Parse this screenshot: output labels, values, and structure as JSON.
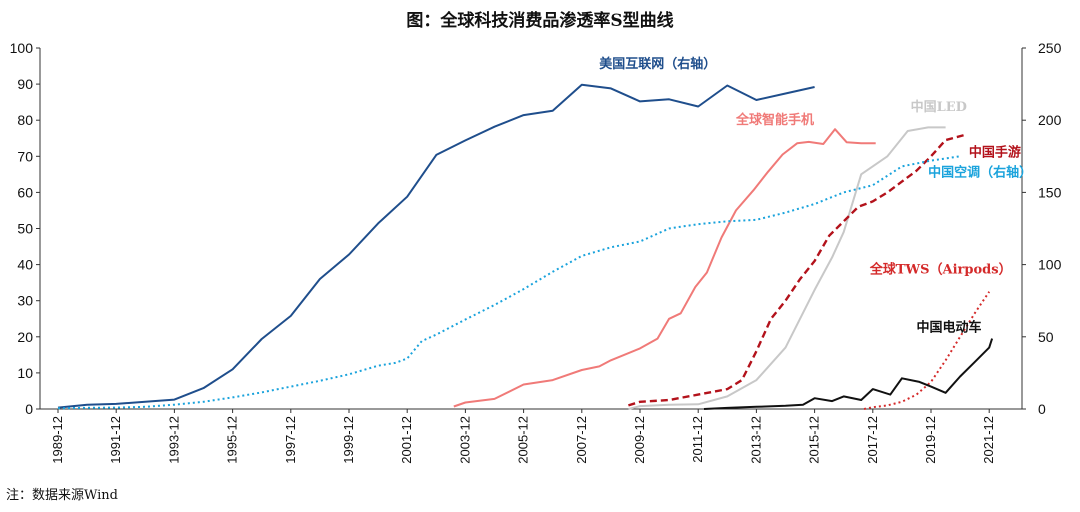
{
  "title": "图：全球科技消费品渗透率S型曲线",
  "note": "注：数据来源Wind",
  "colors": {
    "internet": "#1f4e8c",
    "smartphone": "#f07a78",
    "led": "#c8c8c8",
    "mobile_game": "#b3121b",
    "aircon": "#1aa3dc",
    "tws": "#d42a2a",
    "ev": "#111111"
  },
  "chart_data": {
    "type": "line",
    "title": "图：全球科技消费品渗透率S型曲线",
    "xlabel": "",
    "ylabel": "",
    "ylim_left": [
      0,
      100
    ],
    "yticks_left": [
      "0",
      "10",
      "20",
      "30",
      "40",
      "50",
      "60",
      "70",
      "80",
      "90",
      "100"
    ],
    "ylim_right": [
      0,
      250
    ],
    "yticks_right": [
      "0",
      "50",
      "100",
      "150",
      "200",
      "250"
    ],
    "xlim": [
      1989,
      2022.5
    ],
    "xticks": [
      "1989-12",
      "1991-12",
      "1993-12",
      "1995-12",
      "1997-12",
      "1999-12",
      "2001-12",
      "2003-12",
      "2005-12",
      "2007-12",
      "2009-12",
      "2011-12",
      "2013-12",
      "2015-12",
      "2017-12",
      "2019-12",
      "2021-12"
    ],
    "legend": "inline labels",
    "grid": false,
    "series": [
      {
        "key": "internet",
        "name": "美国互联网（右轴）",
        "axis": "right",
        "style": "solid",
        "color": "#1f4e8c",
        "label_pos": [
          2007.6,
          236
        ],
        "x": [
          1989,
          1990,
          1991,
          1992,
          1993,
          1994,
          1995,
          1996,
          1997,
          1998,
          1999,
          2000,
          2001,
          2002,
          2003,
          2004,
          2005,
          2006,
          2007,
          2008,
          2009,
          2010,
          2011,
          2012,
          2013,
          2014,
          2015
        ],
        "y": [
          1,
          3,
          3.5,
          5,
          6.5,
          14.5,
          27.5,
          48.5,
          64.5,
          90,
          107,
          128.5,
          147,
          176,
          186,
          195.5,
          203.5,
          206.5,
          224.5,
          222,
          213,
          214.5,
          209.5,
          224,
          214,
          218.5,
          223
        ]
      },
      {
        "key": "smartphone",
        "name": "全球智能手机",
        "axis": "left",
        "style": "solid",
        "color": "#f07a78",
        "label_pos": [
          2012.3,
          79
        ],
        "x": [
          2002.6,
          2003,
          2004,
          2005,
          2006,
          2007,
          2007.6,
          2008,
          2009,
          2009.6,
          2010,
          2010.4,
          2010.9,
          2011.3,
          2011.8,
          2012.3,
          2012.9,
          2013.4,
          2013.9,
          2014.4,
          2014.8,
          2015.3,
          2015.7,
          2016.1,
          2016.6,
          2017.1
        ],
        "y": [
          0.7,
          1.8,
          2.8,
          6.8,
          8,
          10.8,
          11.8,
          13.5,
          16.8,
          19.5,
          25,
          26.5,
          33.8,
          37.8,
          47.5,
          55,
          60.6,
          65.7,
          70.5,
          73.6,
          74,
          73.4,
          77.5,
          73.9,
          73.6,
          73.6
        ]
      },
      {
        "key": "led",
        "name": "中国LED",
        "axis": "left",
        "style": "solid",
        "color": "#c8c8c8",
        "label_pos": [
          2018.3,
          82.5
        ],
        "x": [
          2008.6,
          2009,
          2010,
          2011,
          2012,
          2013,
          2014,
          2015,
          2015.6,
          2016,
          2016.6,
          2017.5,
          2018.2,
          2018.9,
          2019.5
        ],
        "y": [
          0,
          0.8,
          1.2,
          1.3,
          3.5,
          8,
          17,
          33,
          42,
          49,
          65,
          70,
          77,
          78,
          78
        ]
      },
      {
        "key": "mobile_game",
        "name": "中国手游",
        "axis": "left",
        "style": "dashed",
        "color": "#b3121b",
        "label_pos": [
          2020.3,
          70
        ],
        "x": [
          2008.6,
          2009,
          2010,
          2011,
          2012,
          2012.5,
          2013,
          2013.5,
          2014,
          2014.5,
          2015,
          2015.5,
          2016,
          2016.5,
          2017,
          2017.5,
          2018,
          2018.5,
          2019,
          2019.5,
          2020.2
        ],
        "y": [
          1,
          2,
          2.5,
          4,
          5.5,
          8,
          16,
          25,
          30,
          36,
          41,
          48,
          52,
          56,
          57.5,
          60,
          63,
          66,
          70,
          74.5,
          76
        ]
      },
      {
        "key": "aircon",
        "name": "中国空调（右轴）",
        "axis": "right",
        "style": "dotted",
        "color": "#1aa3dc",
        "label_pos": [
          2018.9,
          161
        ],
        "x": [
          1989,
          1990,
          1991,
          1992,
          1993,
          1994,
          1995,
          1996,
          1997,
          1998,
          1999,
          2000,
          2000.6,
          2001,
          2001.5,
          2002,
          2003,
          2004,
          2005,
          2006,
          2007,
          2008,
          2009,
          2010,
          2010.5,
          2011,
          2012,
          2013,
          2014,
          2015,
          2016,
          2017,
          2018,
          2019,
          2020
        ],
        "y": [
          0.5,
          0.8,
          1,
          1.5,
          3,
          5,
          8,
          11.5,
          15.5,
          19.5,
          24,
          30,
          32,
          35,
          47,
          51.5,
          62,
          72,
          83,
          95,
          106,
          112,
          116,
          125,
          126.5,
          128,
          130,
          131,
          136,
          142,
          150,
          155,
          168,
          172,
          175
        ]
      },
      {
        "key": "tws",
        "name": "全球TWS（Airpods）",
        "axis": "left",
        "style": "dotted",
        "color": "#d42a2a",
        "label_pos": [
          2016.9,
          37.5
        ],
        "x": [
          2016.7,
          2017,
          2017.5,
          2018,
          2018.5,
          2019,
          2019.5,
          2020,
          2020.5,
          2021
        ],
        "y": [
          0,
          0.5,
          1,
          2,
          4,
          7.5,
          13.5,
          20,
          26.5,
          32.5
        ]
      },
      {
        "key": "ev",
        "name": "中国电动车",
        "axis": "left",
        "style": "solid",
        "color": "#111111",
        "label_pos": [
          2018.5,
          21.5
        ],
        "x": [
          2011.2,
          2012,
          2013,
          2014,
          2014.6,
          2015,
          2015.6,
          2016,
          2016.6,
          2017,
          2017.6,
          2018,
          2018.6,
          2019,
          2019.5,
          2020,
          2020.5,
          2021,
          2021.1
        ],
        "y": [
          0,
          0.3,
          0.6,
          0.9,
          1.2,
          3,
          2.2,
          3.5,
          2.5,
          5.5,
          4,
          8.5,
          7.5,
          6.2,
          4.5,
          9,
          13,
          17,
          19.5
        ]
      }
    ]
  }
}
